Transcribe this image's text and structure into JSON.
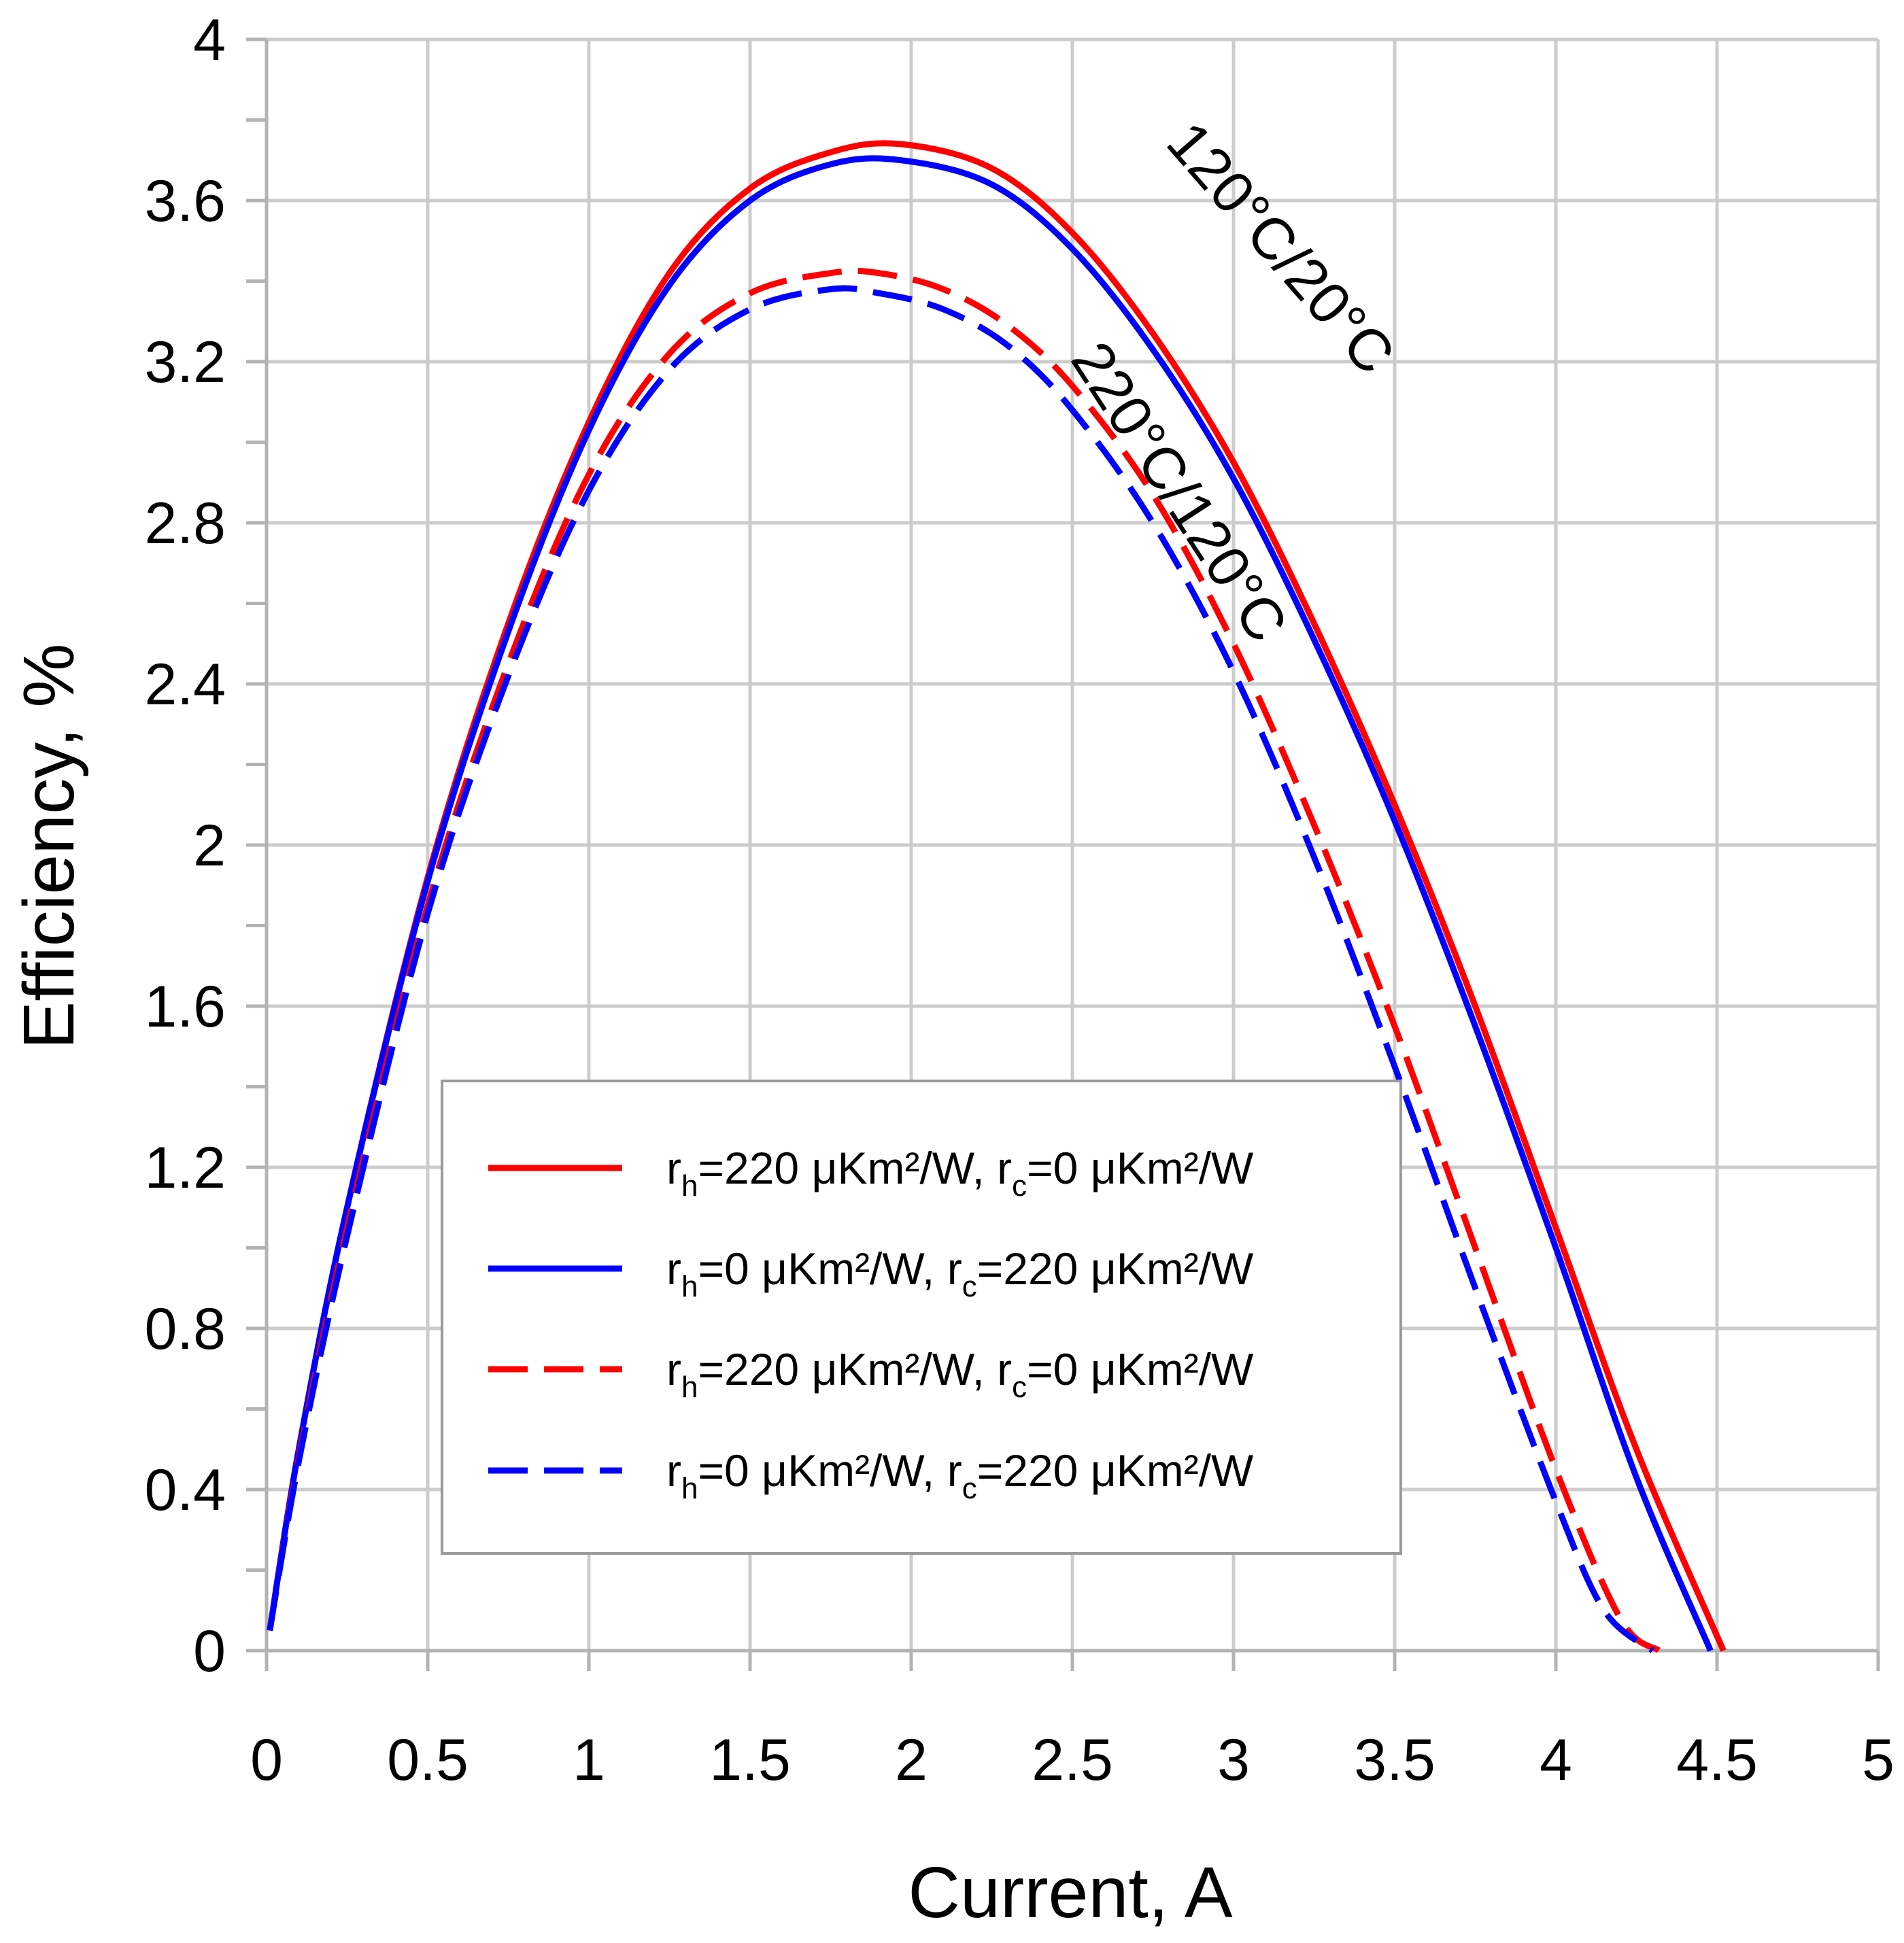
{
  "chart_data": {
    "type": "line",
    "title": "",
    "xlabel": "Current, A",
    "ylabel": "Efficiency, %",
    "xlim": [
      0,
      5
    ],
    "ylim": [
      0,
      4
    ],
    "xticks": [
      0,
      0.5,
      1,
      1.5,
      2,
      2.5,
      3,
      3.5,
      4,
      4.5,
      5
    ],
    "xtick_labels": [
      "0",
      "0.5",
      "1",
      "1.5",
      "2",
      "2.5",
      "3",
      "3.5",
      "4",
      "4.5",
      "5"
    ],
    "yticks": [
      0,
      0.4,
      0.8,
      1.2,
      1.6,
      2,
      2.4,
      2.8,
      3.2,
      3.6,
      4
    ],
    "ytick_labels": [
      "0",
      "0.4",
      "0.8",
      "1.2",
      "1.6",
      "2",
      "2.4",
      "2.8",
      "3.2",
      "3.6",
      "4"
    ],
    "grid": true,
    "legend_position": "lower-center",
    "colors": {
      "red": "#ff0000",
      "blue": "#0000ff"
    },
    "series": [
      {
        "name": "rh=220 μKm²/W, rc=0 μKm²/W (120°C/20°C)",
        "legend": {
          "a": "r",
          "a_sub": "h",
          "b": "=220 μKm²/W, r",
          "b_sub": "c",
          "c": "=0 μKm²/W"
        },
        "color": "#ff0000",
        "dash": "solid",
        "x": [
          0.01,
          0.1,
          0.25,
          0.5,
          0.75,
          1.0,
          1.25,
          1.5,
          1.75,
          1.97,
          2.25,
          2.5,
          2.75,
          3.0,
          3.25,
          3.5,
          3.75,
          4.0,
          4.25,
          4.52
        ],
        "y": [
          0.05,
          0.5,
          1.1,
          1.92,
          2.55,
          3.05,
          3.42,
          3.63,
          3.72,
          3.74,
          3.68,
          3.52,
          3.27,
          2.95,
          2.55,
          2.1,
          1.6,
          1.05,
          0.5,
          0.0
        ]
      },
      {
        "name": "rh=0 μKm²/W, rc=220 μKm²/W (120°C/20°C)",
        "legend": {
          "a": "r",
          "a_sub": "h",
          "b": "=0 μKm²/W, r",
          "b_sub": "c",
          "c": "=220 μKm²/W"
        },
        "color": "#0000ff",
        "dash": "solid",
        "x": [
          0.01,
          0.1,
          0.25,
          0.5,
          0.75,
          1.0,
          1.25,
          1.5,
          1.75,
          1.97,
          2.25,
          2.5,
          2.75,
          3.0,
          3.25,
          3.5,
          3.75,
          4.0,
          4.25,
          4.48
        ],
        "y": [
          0.05,
          0.5,
          1.1,
          1.91,
          2.53,
          3.03,
          3.39,
          3.6,
          3.69,
          3.7,
          3.64,
          3.48,
          3.23,
          2.91,
          2.51,
          2.06,
          1.55,
          1.0,
          0.43,
          0.0
        ]
      },
      {
        "name": "rh=220 μKm²/W, rc=0 μKm²/W (220°C/120°C)",
        "legend": {
          "a": "r",
          "a_sub": "h",
          "b": "=220 μKm²/W, r",
          "b_sub": "c",
          "c": "=0 μKm²/W"
        },
        "color": "#ff0000",
        "dash": "dashed",
        "x": [
          0.01,
          0.1,
          0.25,
          0.5,
          0.75,
          1.0,
          1.25,
          1.5,
          1.75,
          1.9,
          2.1,
          2.3,
          2.5,
          2.75,
          3.0,
          3.25,
          3.5,
          3.75,
          4.0,
          4.2,
          4.32
        ],
        "y": [
          0.05,
          0.48,
          1.05,
          1.85,
          2.45,
          2.92,
          3.22,
          3.37,
          3.42,
          3.42,
          3.38,
          3.29,
          3.14,
          2.87,
          2.5,
          2.05,
          1.55,
          1.0,
          0.45,
          0.08,
          0.0
        ]
      },
      {
        "name": "rh=0 μKm²/W, rc=220 μKm²/W (220°C/120°C)",
        "legend": {
          "a": "r",
          "a_sub": "h",
          "b": "=0 μKm²/W, r",
          "b_sub": "c",
          "c": "=220 μKm²/W"
        },
        "color": "#0000ff",
        "dash": "dashed",
        "x": [
          0.01,
          0.1,
          0.25,
          0.5,
          0.75,
          1.0,
          1.25,
          1.5,
          1.75,
          1.9,
          2.1,
          2.3,
          2.5,
          2.75,
          3.0,
          3.25,
          3.5,
          3.75,
          4.0,
          4.15,
          4.3
        ],
        "y": [
          0.05,
          0.47,
          1.03,
          1.83,
          2.42,
          2.88,
          3.18,
          3.33,
          3.38,
          3.37,
          3.33,
          3.24,
          3.08,
          2.8,
          2.43,
          1.97,
          1.45,
          0.9,
          0.37,
          0.1,
          0.0
        ]
      }
    ],
    "annotations": [
      {
        "text": "120°C/20°C",
        "x": 3.1,
        "y": 3.45,
        "angle_deg": 49
      },
      {
        "text": "220°C/120°C",
        "x": 2.78,
        "y": 2.85,
        "angle_deg": 57
      }
    ]
  }
}
